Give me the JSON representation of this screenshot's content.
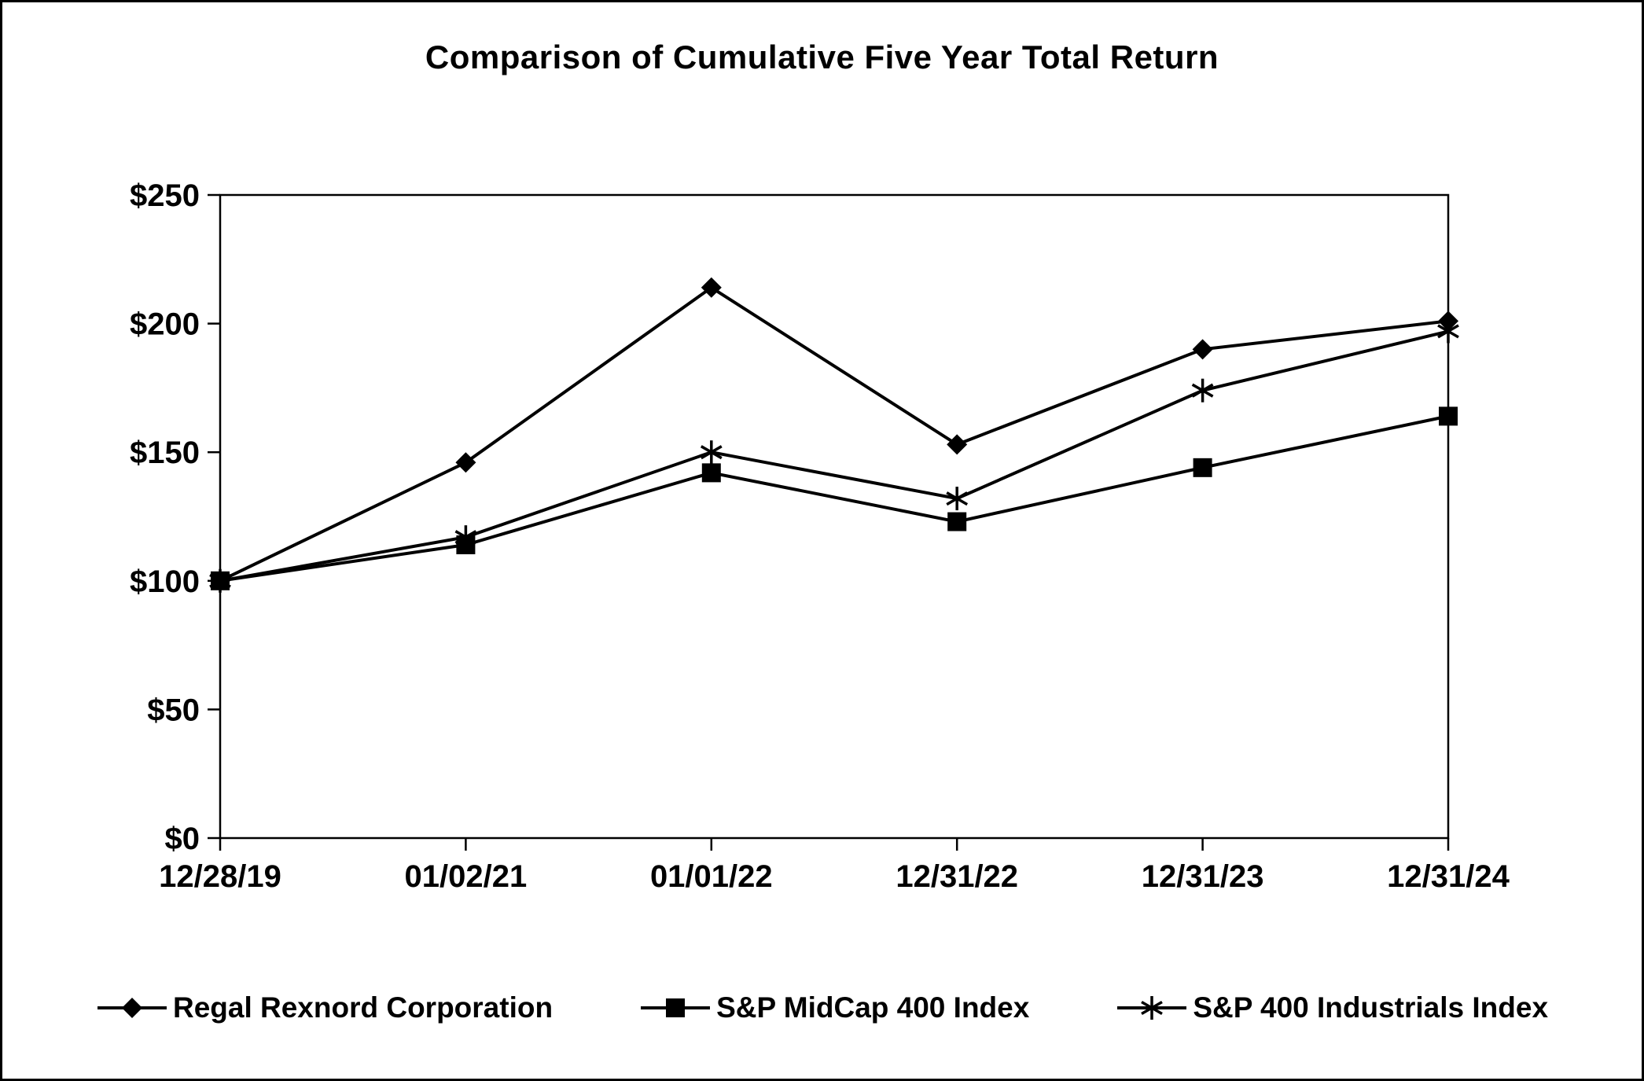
{
  "title": "Comparison of Cumulative Five Year Total Return",
  "chart_data": {
    "type": "line",
    "categories": [
      "12/28/19",
      "01/02/21",
      "01/01/22",
      "12/31/22",
      "12/31/23",
      "12/31/24"
    ],
    "series": [
      {
        "name": "Regal Rexnord Corporation",
        "marker": "diamond",
        "values": [
          100,
          146,
          214,
          153,
          190,
          201
        ]
      },
      {
        "name": "S&P MidCap 400 Index",
        "marker": "square",
        "values": [
          100,
          114,
          142,
          123,
          144,
          164
        ]
      },
      {
        "name": "S&P 400 Industrials Index",
        "marker": "asterisk",
        "values": [
          100,
          117,
          150,
          132,
          174,
          197
        ]
      }
    ],
    "xlabel": "",
    "ylabel": "",
    "ylim": [
      0,
      250
    ],
    "y_ticks": [
      0,
      50,
      100,
      150,
      200,
      250
    ],
    "y_tick_format": "$",
    "grid": false,
    "legend_position": "bottom",
    "line_color": "#000000",
    "background_color": "#ffffff"
  }
}
